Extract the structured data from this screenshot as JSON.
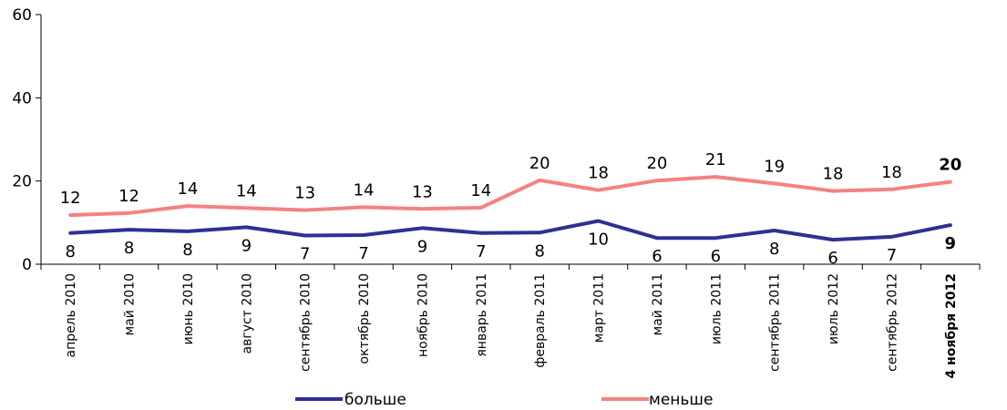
{
  "chart_data": {
    "type": "line",
    "categories": [
      "апрель 2010",
      "май 2010",
      "июнь 2010",
      "август 2010",
      "сентябрь 2010",
      "октябрь 2010",
      "ноябрь 2010",
      "январь 2011",
      "февраль 2011",
      "март 2011",
      "май 2011",
      "июль 2011",
      "сентябрь 2011",
      "июль 2012",
      "сентябрь 2012",
      "4 ноября 2012"
    ],
    "series": [
      {
        "name": "больше",
        "color": "#2e3192",
        "values": [
          7.5,
          8.3,
          7.9,
          8.9,
          6.9,
          7.0,
          8.7,
          7.5,
          7.6,
          10.4,
          6.3,
          6.3,
          8.1,
          5.9,
          6.6,
          9.4
        ],
        "labels": [
          "8",
          "8",
          "8",
          "9",
          "7",
          "7",
          "9",
          "7",
          "8",
          "10",
          "6",
          "6",
          "8",
          "6",
          "7",
          "9"
        ]
      },
      {
        "name": "меньше",
        "color": "#f4827f",
        "values": [
          11.8,
          12.3,
          14.0,
          13.5,
          13.0,
          13.7,
          13.3,
          13.6,
          20.2,
          17.8,
          20.1,
          21.0,
          19.4,
          17.6,
          18.0,
          19.8
        ],
        "labels": [
          "12",
          "12",
          "14",
          "14",
          "13",
          "14",
          "13",
          "14",
          "20",
          "18",
          "20",
          "21",
          "19",
          "18",
          "18",
          "20"
        ]
      }
    ],
    "ylim": [
      0,
      60
    ],
    "yticks": [
      "0",
      "20",
      "40",
      "60"
    ],
    "grid": false,
    "legend_position": "bottom",
    "highlight_last": true
  }
}
